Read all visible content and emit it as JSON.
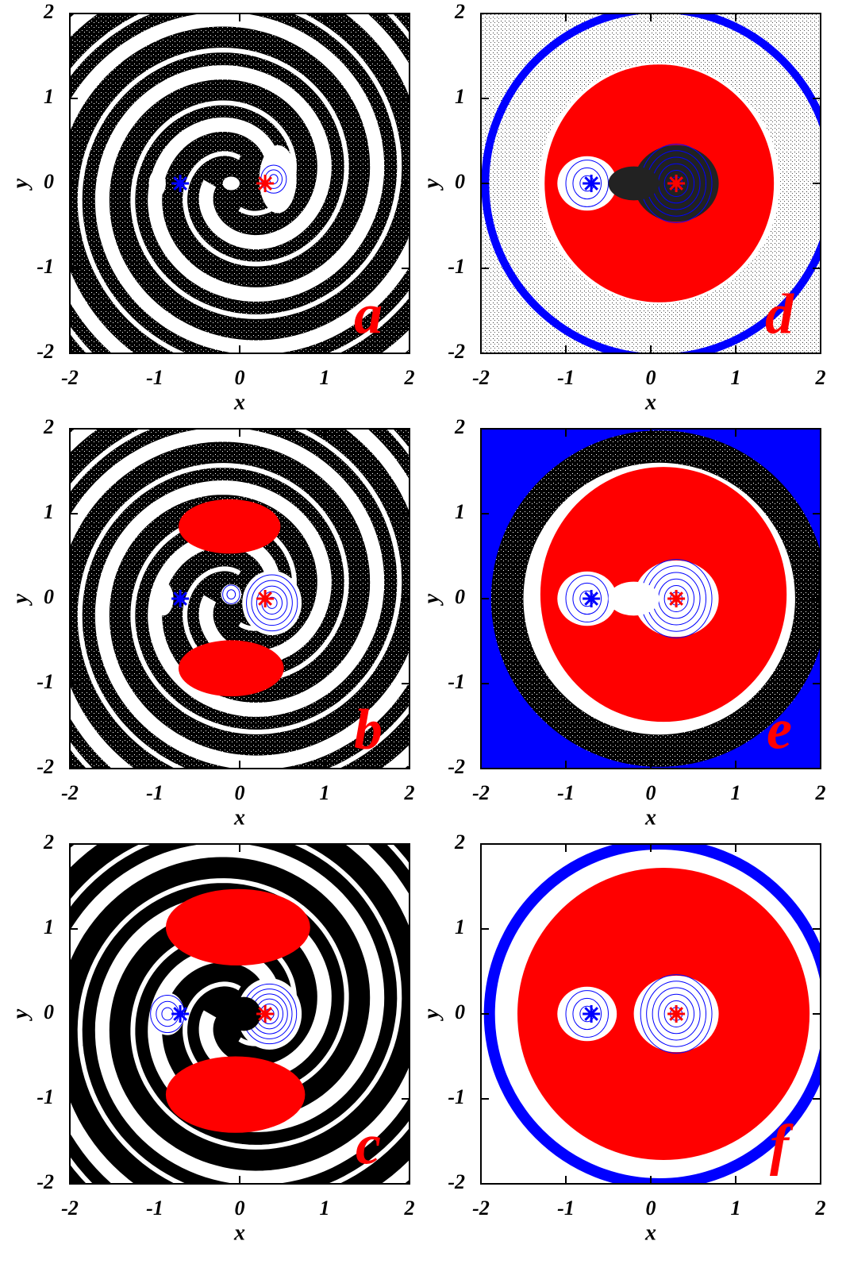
{
  "chart_data": [
    {
      "type": "scatter",
      "panel_label": "a",
      "x_label": "x",
      "y_label": "y",
      "xlim": [
        -2,
        2
      ],
      "ylim": [
        -2,
        2
      ],
      "xticks": [
        -2,
        -1,
        0,
        1,
        2
      ],
      "yticks": [
        -2,
        -1,
        0,
        1,
        2
      ],
      "series": [
        {
          "color": "#0000ff",
          "x": [
            -0.7
          ],
          "values": [
            0
          ]
        },
        {
          "color": "#ff0000",
          "x": [
            0.3
          ],
          "values": [
            0
          ]
        }
      ]
    },
    {
      "type": "scatter",
      "panel_label": "d",
      "x_label": "x",
      "y_label": "y",
      "xlim": [
        -2,
        2
      ],
      "ylim": [
        -2,
        2
      ],
      "xticks": [
        -2,
        -1,
        0,
        1,
        2
      ],
      "yticks": [
        -2,
        -1,
        0,
        1,
        2
      ],
      "series": [
        {
          "color": "#0000ff",
          "x": [
            -0.7
          ],
          "values": [
            0
          ]
        },
        {
          "color": "#ff0000",
          "x": [
            0.3
          ],
          "values": [
            0
          ]
        }
      ]
    },
    {
      "type": "scatter",
      "panel_label": "b",
      "x_label": "x",
      "y_label": "y",
      "xlim": [
        -2,
        2
      ],
      "ylim": [
        -2,
        2
      ],
      "xticks": [
        -2,
        -1,
        0,
        1,
        2
      ],
      "yticks": [
        -2,
        -1,
        0,
        1,
        2
      ],
      "series": [
        {
          "color": "#0000ff",
          "x": [
            -0.7
          ],
          "values": [
            0
          ]
        },
        {
          "color": "#ff0000",
          "x": [
            0.3
          ],
          "values": [
            0
          ]
        }
      ]
    },
    {
      "type": "scatter",
      "panel_label": "e",
      "x_label": "x",
      "y_label": "y",
      "xlim": [
        -2,
        2
      ],
      "ylim": [
        -2,
        2
      ],
      "xticks": [
        -2,
        -1,
        0,
        1,
        2
      ],
      "yticks": [
        -2,
        -1,
        0,
        1,
        2
      ],
      "series": [
        {
          "color": "#0000ff",
          "x": [
            -0.7
          ],
          "values": [
            0
          ]
        },
        {
          "color": "#ff0000",
          "x": [
            0.3
          ],
          "values": [
            0
          ]
        }
      ]
    },
    {
      "type": "scatter",
      "panel_label": "c",
      "x_label": "x",
      "y_label": "y",
      "xlim": [
        -2,
        2
      ],
      "ylim": [
        -2,
        2
      ],
      "xticks": [
        -2,
        -1,
        0,
        1,
        2
      ],
      "yticks": [
        -2,
        -1,
        0,
        1,
        2
      ],
      "series": [
        {
          "color": "#0000ff",
          "x": [
            -0.7
          ],
          "values": [
            0
          ]
        },
        {
          "color": "#ff0000",
          "x": [
            0.3
          ],
          "values": [
            0
          ]
        }
      ]
    },
    {
      "type": "scatter",
      "panel_label": "f",
      "x_label": "x",
      "y_label": "y",
      "xlim": [
        -2,
        2
      ],
      "ylim": [
        -2,
        2
      ],
      "xticks": [
        -2,
        -1,
        0,
        1,
        2
      ],
      "yticks": [
        -2,
        -1,
        0,
        1,
        2
      ],
      "series": [
        {
          "color": "#0000ff",
          "x": [
            -0.7
          ],
          "values": [
            0
          ]
        },
        {
          "color": "#ff0000",
          "x": [
            0.3
          ],
          "values": [
            0
          ]
        }
      ]
    }
  ]
}
